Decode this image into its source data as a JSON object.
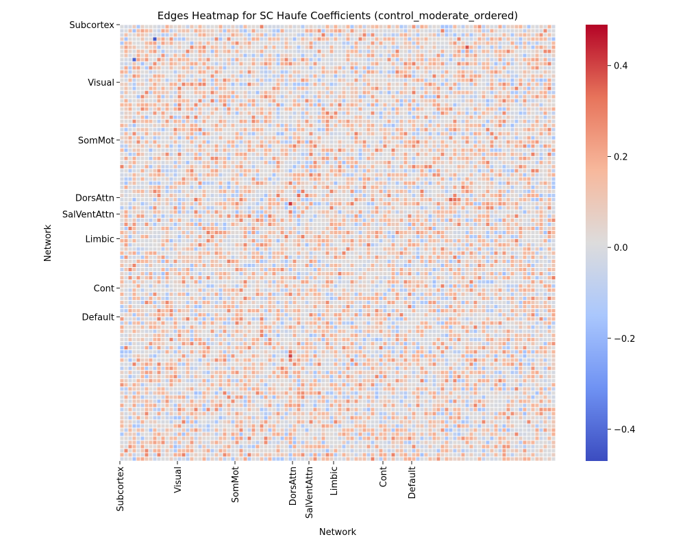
{
  "chart_data": {
    "type": "heatmap",
    "title": "Edges Heatmap for SC Haufe Coefficients (control_moderate_ordered)",
    "xlabel": "Network",
    "ylabel": "Network",
    "networks": [
      {
        "name": "Subcortex",
        "start_index": 0
      },
      {
        "name": "Visual",
        "start_index": 14
      },
      {
        "name": "SomMot",
        "start_index": 28
      },
      {
        "name": "DorsAttn",
        "start_index": 42
      },
      {
        "name": "SalVentAttn",
        "start_index": 46
      },
      {
        "name": "Limbic",
        "start_index": 52
      },
      {
        "name": "Cont",
        "start_index": 64
      },
      {
        "name": "Default",
        "start_index": 71
      }
    ],
    "n_regions": 106,
    "colormap": "coolwarm",
    "colormap_stops": [
      "#3b4cc0",
      "#6f92f3",
      "#aac7fd",
      "#dddcdc",
      "#f7b89c",
      "#e7745b",
      "#b40426"
    ],
    "vmin": -0.47,
    "vmax": 0.49,
    "colorbar_ticks": [
      0.4,
      0.2,
      0.0,
      -0.2,
      -0.4
    ],
    "colorbar_tick_labels": [
      "0.4",
      "0.2",
      "0.0",
      "−0.2",
      "−0.4"
    ],
    "cell_border_color": "#ffffff",
    "seed": 20240517,
    "strong_cells": [
      {
        "row": 3,
        "col": 8,
        "value": -0.45
      },
      {
        "row": 8,
        "col": 3,
        "value": -0.42
      },
      {
        "row": 5,
        "col": 84,
        "value": 0.38
      },
      {
        "row": 42,
        "col": 18,
        "value": 0.32
      },
      {
        "row": 42,
        "col": 80,
        "value": 0.36
      },
      {
        "row": 42,
        "col": 81,
        "value": 0.33
      },
      {
        "row": 43,
        "col": 41,
        "value": 0.42
      },
      {
        "row": 41,
        "col": 43,
        "value": 0.34
      },
      {
        "row": 40,
        "col": 44,
        "value": 0.31
      },
      {
        "row": 80,
        "col": 41,
        "value": 0.4
      },
      {
        "row": 79,
        "col": 41,
        "value": 0.33
      },
      {
        "row": 40,
        "col": 73,
        "value": 0.3
      },
      {
        "row": 43,
        "col": 56,
        "value": 0.3
      }
    ],
    "grid": false,
    "legend": "colorbar-right"
  }
}
